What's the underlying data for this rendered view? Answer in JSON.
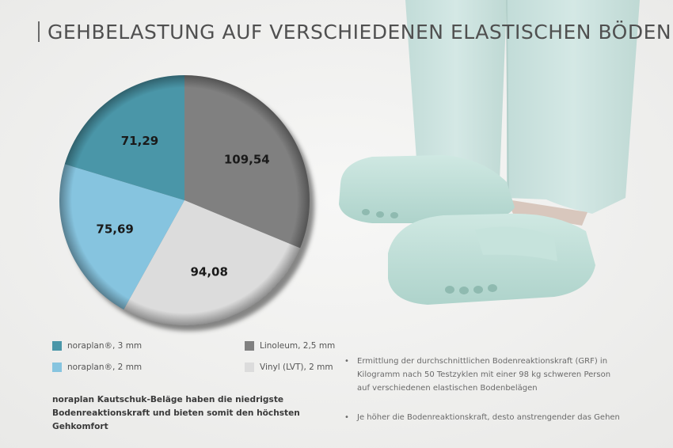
{
  "title": "GEHBELASTUNG AUF VERSCHIEDENEN ELASTISCHEN BÖDEN",
  "chart_data": {
    "type": "pie",
    "title": "GEHBELASTUNG AUF VERSCHIEDENEN ELASTISCHEN BÖDEN",
    "start_angle_deg": 0,
    "direction": "clockwise",
    "slices": [
      {
        "label": "Linoleum, 2,5 mm",
        "value": 109.54,
        "display": "109,54",
        "color": "#808080"
      },
      {
        "label": "Vinyl (LVT), 2 mm",
        "value": 94.08,
        "display": "94,08",
        "color": "#dcdcdc"
      },
      {
        "label": "noraplan®, 2 mm",
        "value": 75.69,
        "display": "75,69",
        "color": "#86c4df"
      },
      {
        "label": "noraplan®, 3 mm",
        "value": 71.29,
        "display": "71,29",
        "color": "#4a96a8"
      }
    ]
  },
  "legend": [
    {
      "label": "noraplan®, 3 mm",
      "color": "#4a96a8"
    },
    {
      "label": "Linoleum, 2,5 mm",
      "color": "#808080"
    },
    {
      "label": "noraplan®, 2 mm",
      "color": "#86c4df"
    },
    {
      "label": "Vinyl (LVT), 2 mm",
      "color": "#dcdcdc"
    }
  ],
  "note": "noraplan Kautschuk-Beläge haben die niedrigste Bodenreaktionskraft und bieten somit den höchsten Gehkomfort",
  "bullets": [
    "Ermittlung der durchschnittlichen Bodenreaktionskraft (GRF) in Kilogramm nach 50 Testzyklen mit einer 98 kg schweren Person auf verschiedenen elastischen Bodenbelägen",
    "Je höher die Bodenreaktionskraft, desto anstrengender das Gehen"
  ],
  "bullet_symbol": "•",
  "background": {
    "floor_color": "#f1f1f0",
    "trouser_color": "#c9e2de",
    "clog_color": "#bcded7"
  }
}
